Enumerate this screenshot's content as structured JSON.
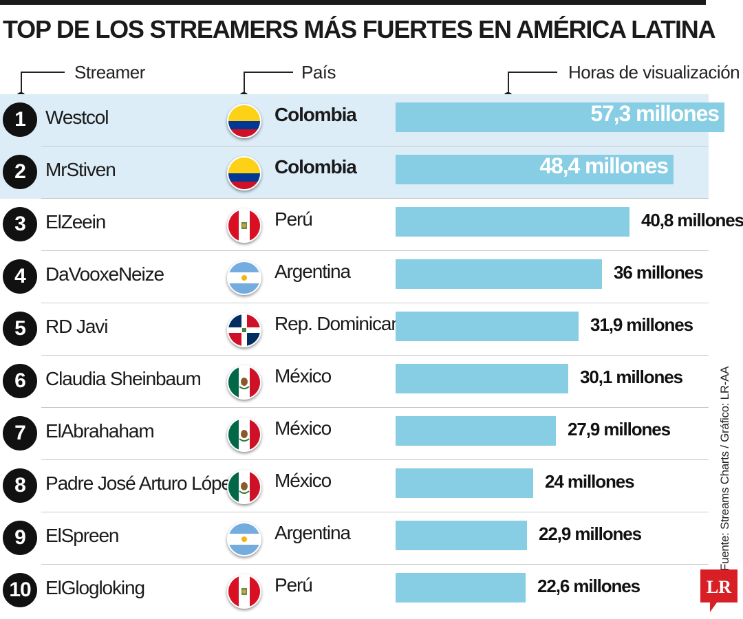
{
  "title": "TOP DE LOS STREAMERS MÁS FUERTES EN AMÉRICA LATINA",
  "headers": {
    "streamer": "Streamer",
    "country": "País",
    "hours": "Horas de visualización"
  },
  "source": "Fuente: Streams Charts / Gráfico: LR-AA",
  "logo_text": "LR",
  "colors": {
    "bar": "#87cde3",
    "highlight_row": "#dcedf7",
    "logo_red": "#d81f26",
    "text": "#1a1a1a"
  },
  "chart_data": {
    "type": "bar",
    "orientation": "horizontal",
    "title": "TOP DE LOS STREAMERS MÁS FUERTES EN AMÉRICA LATINA",
    "xlabel": "Horas de visualización",
    "ylabel": "Streamer",
    "unit": "millones",
    "xlim": [
      0,
      57.3
    ],
    "rows": [
      {
        "rank": "1",
        "name": "Westcol",
        "country": "Colombia",
        "flag": "colombia-flag-icon",
        "value": 57.3,
        "label": "57,3 millones",
        "highlight": true
      },
      {
        "rank": "2",
        "name": "MrStiven",
        "country": "Colombia",
        "flag": "colombia-flag-icon",
        "value": 48.4,
        "label": "48,4 millones",
        "highlight": true
      },
      {
        "rank": "3",
        "name": "ElZeein",
        "country": "Perú",
        "flag": "peru-flag-icon",
        "value": 40.8,
        "label": "40,8 millones",
        "highlight": false
      },
      {
        "rank": "4",
        "name": "DaVooxeNeize",
        "country": "Argentina",
        "flag": "argentina-flag-icon",
        "value": 36,
        "label": "36 millones",
        "highlight": false
      },
      {
        "rank": "5",
        "name": "RD Javi",
        "country": "Rep. Dominicana",
        "flag": "dominican-republic-flag-icon",
        "value": 31.9,
        "label": "31,9 millones",
        "highlight": false
      },
      {
        "rank": "6",
        "name": "Claudia Sheinbaum",
        "country": "México",
        "flag": "mexico-flag-icon",
        "value": 30.1,
        "label": "30,1 millones",
        "highlight": false
      },
      {
        "rank": "7",
        "name": "ElAbrahaham",
        "country": "México",
        "flag": "mexico-flag-icon",
        "value": 27.9,
        "label": "27,9 millones",
        "highlight": false
      },
      {
        "rank": "8",
        "name": "Padre José Arturo López",
        "country": "México",
        "flag": "mexico-flag-icon",
        "value": 24,
        "label": "24 millones",
        "highlight": false
      },
      {
        "rank": "9",
        "name": "ElSpreen",
        "country": "Argentina",
        "flag": "argentina-flag-icon",
        "value": 22.9,
        "label": "22,9 millones",
        "highlight": false
      },
      {
        "rank": "10",
        "name": "ElGlogloking",
        "country": "Perú",
        "flag": "peru-flag-icon",
        "value": 22.6,
        "label": "22,6 millones",
        "highlight": false
      }
    ]
  }
}
